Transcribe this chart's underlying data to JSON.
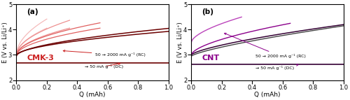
{
  "panel_a_label": "(a)",
  "panel_b_label": "(b)",
  "panel_a_material": "CMK-3",
  "panel_b_material": "CNT",
  "xlabel": "Q (mAh)",
  "ylabel": "E (V vs. Li/Li⁺)",
  "ylim": [
    2.0,
    5.0
  ],
  "xlim": [
    0.0,
    1.0
  ],
  "yticks": [
    2,
    3,
    4,
    5
  ],
  "xticks": [
    0.0,
    0.2,
    0.4,
    0.6,
    0.8,
    1.0
  ],
  "annotation_rc": "50 → 2000 mA g⁻¹ (RC)",
  "annotation_dc": "→ 50 mA g⁻¹ (DC)",
  "color_dark_red": "#6B0000",
  "color_mid_red": "#CC2222",
  "color_light_red1": "#E06060",
  "color_light_red2": "#EE9090",
  "color_light_red3": "#F5BBBB",
  "color_dark_purple": "#330033",
  "color_mid_purple": "#8B008B",
  "color_light_purple1": "#BB44BB",
  "color_light_purple2": "#DD88DD",
  "background": "#ffffff"
}
